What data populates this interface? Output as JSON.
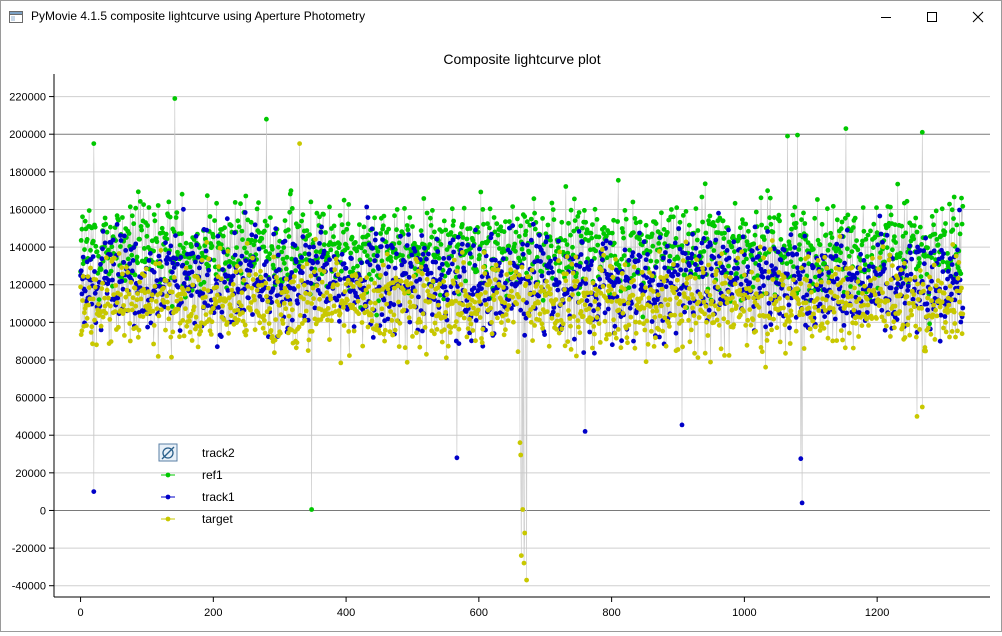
{
  "window": {
    "title": "PyMovie 4.1.5 composite lightcurve using Aperture Photometry",
    "icons": {
      "app": "app-window-icon",
      "minimize": "minimize-icon",
      "maximize": "maximize-icon",
      "close": "close-icon"
    }
  },
  "chart_data": {
    "type": "scatter",
    "title": "Composite lightcurve plot",
    "xlabel": "",
    "ylabel": "",
    "xlim": [
      -40,
      1370
    ],
    "ylim": [
      -46000,
      232000
    ],
    "x_ticks": [
      0,
      200,
      400,
      600,
      800,
      1000,
      1200
    ],
    "y_ticks": [
      220000,
      200000,
      180000,
      160000,
      140000,
      120000,
      100000,
      80000,
      60000,
      40000,
      20000,
      0,
      -20000,
      -40000
    ],
    "x_tick_labels": [
      "0",
      "200",
      "400",
      "600",
      "800",
      "1000",
      "1200"
    ],
    "y_tick_labels": [
      "220000",
      "200000",
      "180000",
      "160000",
      "140000",
      "120000",
      "100000",
      "80000",
      "60000",
      "40000",
      "20000",
      "0",
      "-20000",
      "-40000"
    ],
    "grid": "horizontal",
    "legend_position": "lower-left",
    "n_points_per_series": 1330,
    "connecting_line_color": "#c8c8c8",
    "series": [
      {
        "name": "track2",
        "color": "#4a7fa5",
        "visible": false,
        "values": []
      },
      {
        "name": "ref1",
        "color": "#00c800",
        "visible": true,
        "typical_range": [
          80000,
          200000
        ],
        "center": 140000,
        "spread": 22000,
        "extreme_points": [
          {
            "x": 142,
            "y": 219000
          },
          {
            "x": 280,
            "y": 208000
          },
          {
            "x": 20,
            "y": 10000
          },
          {
            "x": 1153,
            "y": 203000
          },
          {
            "x": 1268,
            "y": 201000
          },
          {
            "x": 1080,
            "y": 199500
          },
          {
            "x": 1065,
            "y": 199000
          },
          {
            "x": 20,
            "y": 195000
          },
          {
            "x": 348,
            "y": 500
          }
        ]
      },
      {
        "name": "track1",
        "color": "#0000c8",
        "visible": true,
        "typical_range": [
          65000,
          180000
        ],
        "center": 122000,
        "spread": 24000,
        "extreme_points": [
          {
            "x": 20,
            "y": 10000
          },
          {
            "x": 1087,
            "y": 4000
          },
          {
            "x": 1085,
            "y": 27500
          },
          {
            "x": 567,
            "y": 28000
          },
          {
            "x": 760,
            "y": 42000
          },
          {
            "x": 906,
            "y": 45500
          }
        ]
      },
      {
        "name": "target",
        "color": "#c8c800",
        "visible": true,
        "typical_range": [
          60000,
          160000
        ],
        "center": 110000,
        "spread": 22000,
        "extreme_points": [
          {
            "x": 672,
            "y": -37000
          },
          {
            "x": 668,
            "y": -28000
          },
          {
            "x": 664,
            "y": -24000
          },
          {
            "x": 669,
            "y": -12000
          },
          {
            "x": 666,
            "y": 500
          },
          {
            "x": 663,
            "y": 29500
          },
          {
            "x": 662,
            "y": 36000
          },
          {
            "x": 1260,
            "y": 50000
          },
          {
            "x": 1268,
            "y": 55000
          },
          {
            "x": 330,
            "y": 195000
          }
        ]
      }
    ]
  }
}
